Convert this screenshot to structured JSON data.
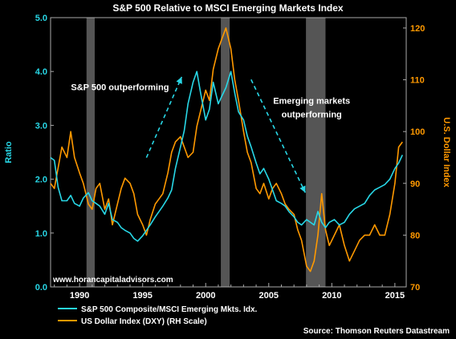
{
  "chart_data": {
    "type": "line",
    "title": "S&P 500 Relative to MSCI Emerging Markets Index",
    "ylabel": "Ratio",
    "y2label": "U.S. Dollar Index",
    "ylim": [
      0.0,
      5.0
    ],
    "y2lim": [
      70,
      122
    ],
    "xlim": [
      1987.7,
      2015.9
    ],
    "y_ticks": [
      "0.0",
      "1.0",
      "2.0",
      "3.0",
      "4.0",
      "5.0"
    ],
    "y2_ticks": [
      "70",
      "80",
      "90",
      "100",
      "110",
      "120"
    ],
    "x_ticks": [
      "1990",
      "1995",
      "2000",
      "2005",
      "2010",
      "2015"
    ],
    "grid": false,
    "legend_position": "bottom-left",
    "colors": {
      "ratio": "#28d7e6",
      "dollar": "#ff9900",
      "shade": "#555555"
    },
    "shaded_periods": [
      [
        1990.55,
        1991.2
      ],
      [
        2001.2,
        2001.9
      ],
      [
        2007.95,
        2009.5
      ]
    ],
    "annotations": [
      {
        "text": "S&P 500 outperforming",
        "x": 1993.2,
        "y": 3.65
      },
      {
        "text": "Emerging markets",
        "x": 2008.4,
        "y": 3.4
      },
      {
        "text": "outperforming",
        "x": 2008.4,
        "y": 3.15
      }
    ],
    "arrows": [
      {
        "from": [
          1995.3,
          2.4
        ],
        "to": [
          1998.1,
          3.9
        ]
      },
      {
        "from": [
          2003.6,
          3.85
        ],
        "to": [
          2007.9,
          1.75
        ]
      }
    ],
    "watermark": "www.horancapitaladvisors.com",
    "source": "Source: Thomson Reuters Datastream",
    "series": [
      {
        "name": "S&P 500 Composite/MSCI Emerging Mkts. Idx.",
        "axis": "left",
        "x": [
          1987.7,
          1988.0,
          1988.3,
          1988.6,
          1989.0,
          1989.3,
          1989.6,
          1990.0,
          1990.3,
          1990.7,
          1991.0,
          1991.3,
          1991.6,
          1992.0,
          1992.3,
          1992.6,
          1993.0,
          1993.3,
          1993.6,
          1994.0,
          1994.3,
          1994.6,
          1995.0,
          1995.3,
          1995.6,
          1996.0,
          1996.3,
          1996.6,
          1997.0,
          1997.3,
          1997.6,
          1998.0,
          1998.3,
          1998.6,
          1999.0,
          1999.3,
          1999.6,
          2000.0,
          2000.3,
          2000.6,
          2001.0,
          2001.3,
          2001.6,
          2002.0,
          2002.3,
          2002.6,
          2003.0,
          2003.3,
          2003.6,
          2004.0,
          2004.3,
          2004.6,
          2005.0,
          2005.3,
          2005.6,
          2006.0,
          2006.3,
          2006.6,
          2007.0,
          2007.3,
          2007.6,
          2008.0,
          2008.3,
          2008.6,
          2008.9,
          2009.2,
          2009.5,
          2009.8,
          2010.2,
          2010.6,
          2011.0,
          2011.4,
          2011.8,
          2012.2,
          2012.6,
          2013.0,
          2013.4,
          2013.8,
          2014.2,
          2014.6,
          2015.0,
          2015.3,
          2015.6
        ],
        "y": [
          2.4,
          2.35,
          1.85,
          1.6,
          1.6,
          1.7,
          1.55,
          1.5,
          1.65,
          1.75,
          1.6,
          1.55,
          1.5,
          1.35,
          1.55,
          1.25,
          1.2,
          1.1,
          1.05,
          1.0,
          0.9,
          0.85,
          0.95,
          1.05,
          1.15,
          1.3,
          1.4,
          1.5,
          1.65,
          1.8,
          2.2,
          2.6,
          2.9,
          3.4,
          3.8,
          4.0,
          3.6,
          3.1,
          3.3,
          3.8,
          3.4,
          3.55,
          3.7,
          4.0,
          3.6,
          3.25,
          3.1,
          2.8,
          2.6,
          2.3,
          2.1,
          2.2,
          2.0,
          1.8,
          1.6,
          1.55,
          1.5,
          1.4,
          1.3,
          1.2,
          1.15,
          1.25,
          1.2,
          1.15,
          1.4,
          1.2,
          1.1,
          1.2,
          1.25,
          1.15,
          1.2,
          1.35,
          1.45,
          1.5,
          1.55,
          1.7,
          1.8,
          1.85,
          1.9,
          2.0,
          2.2,
          2.3,
          2.45
        ]
      },
      {
        "name": "US Dollar Index (DXY) (RH Scale)",
        "axis": "right",
        "x": [
          1987.7,
          1988.0,
          1988.3,
          1988.6,
          1989.0,
          1989.3,
          1989.6,
          1990.0,
          1990.3,
          1990.7,
          1991.0,
          1991.3,
          1991.6,
          1992.0,
          1992.3,
          1992.6,
          1993.0,
          1993.3,
          1993.6,
          1994.0,
          1994.3,
          1994.6,
          1995.0,
          1995.3,
          1995.6,
          1996.0,
          1996.3,
          1996.6,
          1997.0,
          1997.3,
          1997.6,
          1998.0,
          1998.3,
          1998.6,
          1999.0,
          1999.3,
          1999.6,
          2000.0,
          2000.3,
          2000.6,
          2001.0,
          2001.3,
          2001.6,
          2002.0,
          2002.3,
          2002.6,
          2003.0,
          2003.3,
          2003.6,
          2004.0,
          2004.3,
          2004.6,
          2005.0,
          2005.3,
          2005.6,
          2006.0,
          2006.3,
          2006.6,
          2007.0,
          2007.3,
          2007.6,
          2008.0,
          2008.3,
          2008.6,
          2008.9,
          2009.2,
          2009.5,
          2009.8,
          2010.2,
          2010.6,
          2011.0,
          2011.4,
          2011.8,
          2012.2,
          2012.6,
          2013.0,
          2013.4,
          2013.8,
          2014.2,
          2014.6,
          2015.0,
          2015.3,
          2015.6
        ],
        "y": [
          90,
          89,
          93,
          97,
          95,
          100,
          95,
          92,
          90,
          86,
          85,
          89,
          90,
          85,
          87,
          82,
          86,
          89,
          91,
          90,
          88,
          84,
          82,
          80,
          83,
          86,
          87,
          88,
          92,
          96,
          98,
          99,
          97,
          95,
          96,
          101,
          104,
          108,
          106,
          112,
          116,
          118,
          120,
          116,
          110,
          106,
          100,
          96,
          94,
          89,
          88,
          90,
          87,
          89,
          90,
          88,
          86,
          85,
          84,
          81,
          79,
          74,
          73,
          75,
          80,
          88,
          81,
          78,
          80,
          82,
          78,
          75,
          77,
          79,
          80,
          80,
          82,
          80,
          80,
          84,
          90,
          97,
          98
        ]
      }
    ]
  }
}
